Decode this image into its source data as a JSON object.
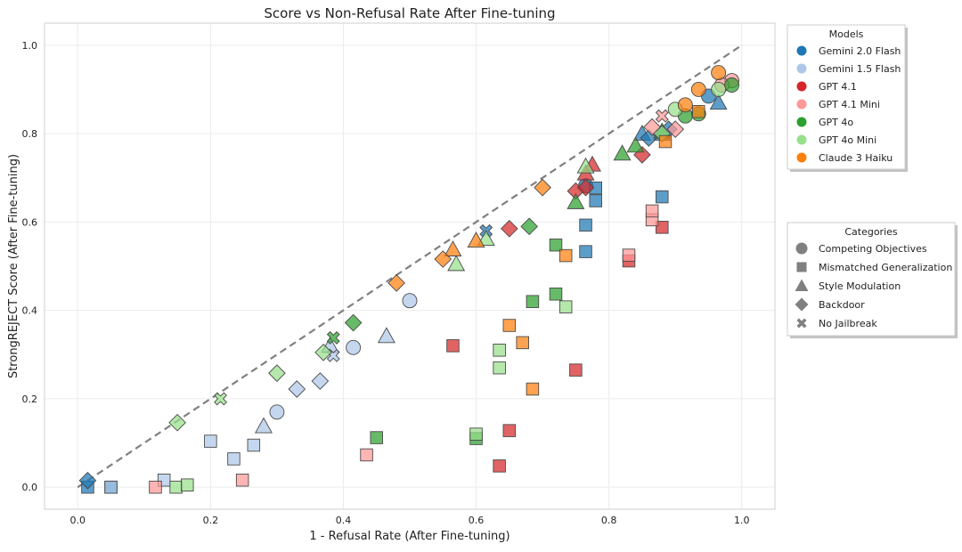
{
  "chart_data": {
    "type": "scatter",
    "title": "Score vs Non-Refusal Rate After Fine-tuning",
    "xlabel": "1 - Refusal Rate (After Fine-tuning)",
    "ylabel": "StrongREJECT Score (After Fine-tuning)",
    "xlim": [
      -0.05,
      1.05
    ],
    "ylim": [
      -0.05,
      1.05
    ],
    "xticks": [
      0.0,
      0.2,
      0.4,
      0.6,
      0.8,
      1.0
    ],
    "yticks": [
      0.0,
      0.2,
      0.4,
      0.6,
      0.8,
      1.0
    ],
    "tick_labels_x": [
      "0.0",
      "0.2",
      "0.4",
      "0.6",
      "0.8",
      "1.0"
    ],
    "tick_labels_y": [
      "0.0",
      "0.2",
      "0.4",
      "0.6",
      "0.8",
      "1.0"
    ],
    "grid": true,
    "reference_line": {
      "style": "dashed",
      "x": [
        0,
        1
      ],
      "y": [
        0,
        1
      ],
      "color": "#808080"
    },
    "models_legend": {
      "title": "Models",
      "placement": "outside-top-right",
      "entries": [
        {
          "name": "Gemini 2.0 Flash",
          "color": "#1f77b4"
        },
        {
          "name": "Gemini 1.5 Flash",
          "color": "#aec7e8"
        },
        {
          "name": "GPT 4.1",
          "color": "#d62728"
        },
        {
          "name": "GPT 4.1 Mini",
          "color": "#ff9896"
        },
        {
          "name": "GPT 4o",
          "color": "#2ca02c"
        },
        {
          "name": "GPT 4o Mini",
          "color": "#98df8a"
        },
        {
          "name": "Claude 3 Haiku",
          "color": "#ff7f0e"
        }
      ]
    },
    "categories_legend": {
      "title": "Categories",
      "placement": "outside-middle-right",
      "entries": [
        {
          "name": "Competing Objectives",
          "marker": "circle"
        },
        {
          "name": "Mismatched Generalization",
          "marker": "square"
        },
        {
          "name": "Style Modulation",
          "marker": "triangle"
        },
        {
          "name": "Backdoor",
          "marker": "diamond"
        },
        {
          "name": "No Jailbreak",
          "marker": "x"
        }
      ]
    },
    "series": [
      {
        "name": "Gemini 2.0 Flash",
        "color": "#1f77b4",
        "points": [
          [
            0.95,
            0.885,
            "circle"
          ],
          [
            0.765,
            0.682,
            "circle"
          ],
          [
            0.88,
            0.657,
            "square"
          ],
          [
            0.78,
            0.677,
            "square"
          ],
          [
            0.78,
            0.648,
            "square"
          ],
          [
            0.765,
            0.593,
            "square"
          ],
          [
            0.765,
            0.533,
            "square"
          ],
          [
            0.015,
            0.0,
            "square"
          ],
          [
            0.05,
            0.0,
            "square"
          ],
          [
            0.965,
            0.87,
            "triangle"
          ],
          [
            0.85,
            0.8,
            "triangle"
          ],
          [
            0.88,
            0.8,
            "triangle"
          ],
          [
            0.86,
            0.79,
            "diamond"
          ],
          [
            0.89,
            0.81,
            "diamond"
          ],
          [
            0.015,
            0.015,
            "diamond"
          ],
          [
            0.615,
            0.58,
            "x"
          ]
        ]
      },
      {
        "name": "Gemini 1.5 Flash",
        "color": "#aec7e8",
        "points": [
          [
            0.5,
            0.422,
            "circle"
          ],
          [
            0.415,
            0.316,
            "circle"
          ],
          [
            0.3,
            0.17,
            "circle"
          ],
          [
            0.2,
            0.104,
            "square"
          ],
          [
            0.235,
            0.064,
            "square"
          ],
          [
            0.265,
            0.095,
            "square"
          ],
          [
            0.13,
            0.016,
            "square"
          ],
          [
            0.05,
            0.0,
            "square"
          ],
          [
            0.465,
            0.342,
            "triangle"
          ],
          [
            0.28,
            0.138,
            "triangle"
          ],
          [
            0.38,
            0.32,
            "triangle"
          ],
          [
            0.365,
            0.24,
            "diamond"
          ],
          [
            0.33,
            0.222,
            "diamond"
          ],
          [
            0.385,
            0.298,
            "x"
          ]
        ]
      },
      {
        "name": "GPT 4.1",
        "color": "#d62728",
        "points": [
          [
            0.565,
            0.32,
            "square"
          ],
          [
            0.65,
            0.128,
            "square"
          ],
          [
            0.635,
            0.048,
            "square"
          ],
          [
            0.75,
            0.265,
            "square"
          ],
          [
            0.83,
            0.512,
            "square"
          ],
          [
            0.88,
            0.588,
            "square"
          ],
          [
            0.775,
            0.73,
            "triangle"
          ],
          [
            0.765,
            0.71,
            "triangle"
          ],
          [
            0.65,
            0.585,
            "diamond"
          ],
          [
            0.75,
            0.67,
            "diamond"
          ],
          [
            0.85,
            0.752,
            "diamond"
          ],
          [
            0.765,
            0.678,
            "diamond"
          ]
        ]
      },
      {
        "name": "GPT 4.1 Mini",
        "color": "#ff9896",
        "points": [
          [
            0.985,
            0.92,
            "circle"
          ],
          [
            0.97,
            0.91,
            "circle"
          ],
          [
            0.435,
            0.073,
            "square"
          ],
          [
            0.248,
            0.016,
            "square"
          ],
          [
            0.117,
            0.0,
            "square"
          ],
          [
            0.83,
            0.525,
            "square"
          ],
          [
            0.865,
            0.605,
            "square"
          ],
          [
            0.865,
            0.625,
            "square"
          ],
          [
            0.865,
            0.815,
            "diamond"
          ],
          [
            0.9,
            0.81,
            "diamond"
          ],
          [
            0.88,
            0.84,
            "x"
          ]
        ]
      },
      {
        "name": "GPT 4o",
        "color": "#2ca02c",
        "points": [
          [
            0.985,
            0.91,
            "circle"
          ],
          [
            0.935,
            0.845,
            "circle"
          ],
          [
            0.915,
            0.84,
            "circle"
          ],
          [
            0.45,
            0.112,
            "square"
          ],
          [
            0.6,
            0.11,
            "square"
          ],
          [
            0.685,
            0.42,
            "square"
          ],
          [
            0.72,
            0.437,
            "square"
          ],
          [
            0.72,
            0.548,
            "square"
          ],
          [
            0.75,
            0.645,
            "triangle"
          ],
          [
            0.82,
            0.755,
            "triangle"
          ],
          [
            0.84,
            0.773,
            "triangle"
          ],
          [
            0.88,
            0.805,
            "triangle"
          ],
          [
            0.68,
            0.59,
            "diamond"
          ],
          [
            0.415,
            0.372,
            "diamond"
          ],
          [
            0.385,
            0.338,
            "x"
          ]
        ]
      },
      {
        "name": "GPT 4o Mini",
        "color": "#98df8a",
        "points": [
          [
            0.965,
            0.9,
            "circle"
          ],
          [
            0.9,
            0.855,
            "circle"
          ],
          [
            0.6,
            0.12,
            "square"
          ],
          [
            0.635,
            0.31,
            "square"
          ],
          [
            0.635,
            0.27,
            "square"
          ],
          [
            0.735,
            0.408,
            "square"
          ],
          [
            0.148,
            0.0,
            "square"
          ],
          [
            0.165,
            0.005,
            "square"
          ],
          [
            0.57,
            0.505,
            "triangle"
          ],
          [
            0.615,
            0.562,
            "triangle"
          ],
          [
            0.765,
            0.726,
            "triangle"
          ],
          [
            0.15,
            0.146,
            "diamond"
          ],
          [
            0.3,
            0.258,
            "diamond"
          ],
          [
            0.37,
            0.305,
            "diamond"
          ],
          [
            0.88,
            0.8,
            "diamond"
          ],
          [
            0.215,
            0.2,
            "x"
          ]
        ]
      },
      {
        "name": "Claude 3 Haiku",
        "color": "#ff7f0e",
        "points": [
          [
            0.965,
            0.938,
            "circle"
          ],
          [
            0.935,
            0.9,
            "circle"
          ],
          [
            0.915,
            0.865,
            "circle"
          ],
          [
            0.65,
            0.366,
            "square"
          ],
          [
            0.67,
            0.327,
            "square"
          ],
          [
            0.685,
            0.222,
            "square"
          ],
          [
            0.735,
            0.524,
            "square"
          ],
          [
            0.885,
            0.782,
            "square"
          ],
          [
            0.935,
            0.85,
            "square"
          ],
          [
            0.6,
            0.558,
            "triangle"
          ],
          [
            0.565,
            0.538,
            "triangle"
          ],
          [
            0.55,
            0.516,
            "diamond"
          ],
          [
            0.48,
            0.462,
            "diamond"
          ],
          [
            0.7,
            0.678,
            "diamond"
          ]
        ]
      }
    ]
  }
}
